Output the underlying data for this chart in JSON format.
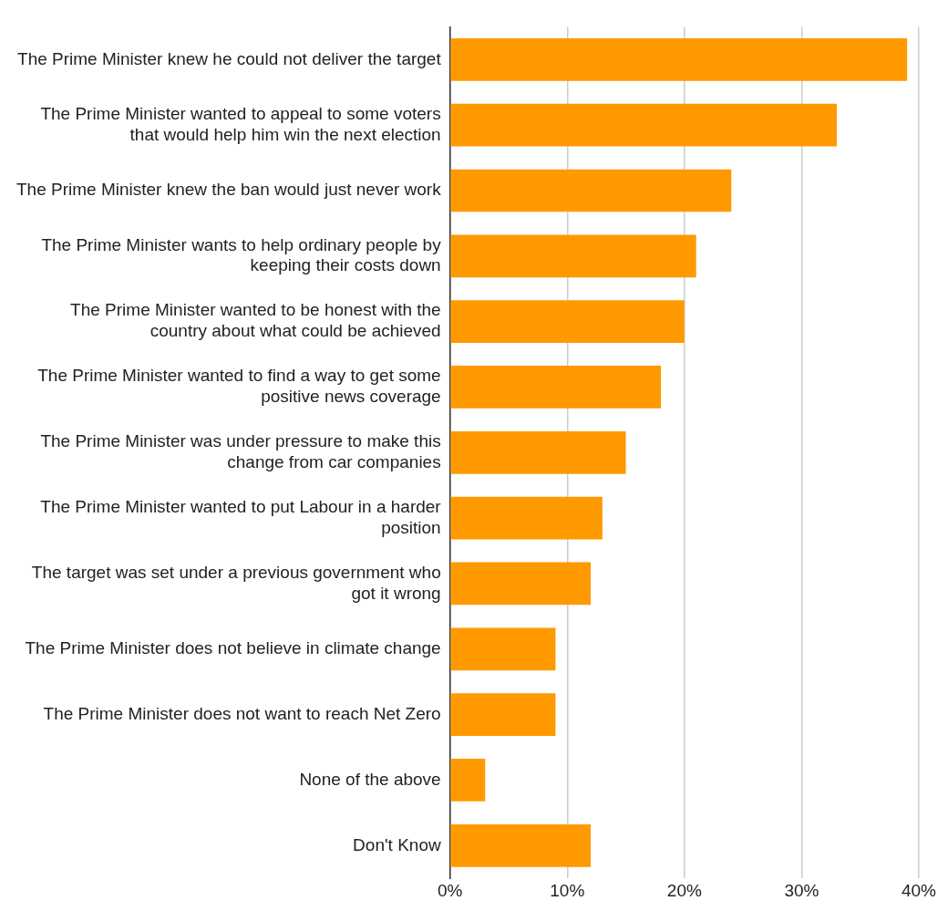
{
  "chart_data": {
    "type": "bar",
    "orientation": "horizontal",
    "categories": [
      "The Prime Minister knew he could not deliver the target",
      "The Prime Minister wanted to appeal to some voters that would help him win the next election",
      "The Prime Minister knew the ban would just never work",
      "The Prime Minister wants to help ordinary people by keeping their costs down",
      "The Prime Minister wanted to be honest with the country about what could be achieved",
      "The Prime Minister wanted to find a way to get some positive news coverage",
      "The Prime Minister was under pressure to make this change from car companies",
      "The Prime Minister wanted to put Labour in a harder position",
      "The target was set under a previous government who got it wrong",
      "The Prime Minister does not believe in climate change",
      "The Prime Minister does not want to reach Net Zero",
      "None of the above",
      "Don't Know"
    ],
    "values": [
      39,
      33,
      24,
      21,
      20,
      18,
      15,
      13,
      12,
      9,
      9,
      3,
      12
    ],
    "color": "#ff9900",
    "xlim": [
      0,
      40
    ],
    "xticks": [
      {
        "value": 0,
        "label": "0%"
      },
      {
        "value": 10,
        "label": "10%"
      },
      {
        "value": 20,
        "label": "20%"
      },
      {
        "value": 30,
        "label": "30%"
      },
      {
        "value": 40,
        "label": "40%"
      }
    ],
    "grid": "x",
    "legend": false
  }
}
